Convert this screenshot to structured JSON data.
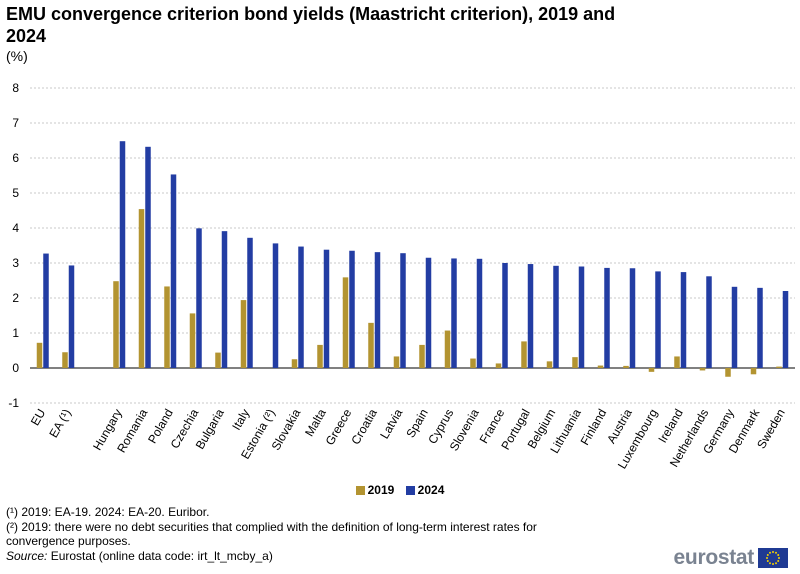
{
  "title": "EMU convergence criterion bond yields (Maastricht criterion), 2019 and 2024",
  "unit": "(%)",
  "chart_data": {
    "type": "bar",
    "categories": [
      "EU",
      "EA (¹)",
      "",
      "Hungary",
      "Romania",
      "Poland",
      "Czechia",
      "Bulgaria",
      "Italy",
      "Estonia (²)",
      "Slovakia",
      "Malta",
      "Greece",
      "Croatia",
      "Latvia",
      "Spain",
      "Cyprus",
      "Slovenia",
      "France",
      "Portugal",
      "Belgium",
      "Lithuania",
      "Finland",
      "Austria",
      "Luxembourg",
      "Ireland",
      "Netherlands",
      "Germany",
      "Denmark",
      "Sweden"
    ],
    "series": [
      {
        "name": "2019",
        "color": "#b39431",
        "values": [
          0.72,
          0.45,
          null,
          2.48,
          4.54,
          2.33,
          1.56,
          0.44,
          1.94,
          null,
          0.25,
          0.66,
          2.59,
          1.29,
          0.33,
          0.66,
          1.07,
          0.27,
          0.13,
          0.76,
          0.19,
          0.31,
          0.07,
          0.06,
          -0.11,
          0.33,
          -0.07,
          -0.25,
          -0.18,
          0.04
        ]
      },
      {
        "name": "2024",
        "color": "#233da3",
        "values": [
          3.27,
          2.93,
          null,
          6.48,
          6.32,
          5.53,
          3.99,
          3.91,
          3.72,
          3.56,
          3.47,
          3.38,
          3.35,
          3.31,
          3.28,
          3.15,
          3.13,
          3.12,
          3.0,
          2.97,
          2.92,
          2.9,
          2.86,
          2.85,
          2.76,
          2.74,
          2.62,
          2.32,
          2.29,
          2.2
        ]
      }
    ],
    "title": "EMU convergence criterion bond yields (Maastricht criterion), 2019 and 2024",
    "xlabel": "",
    "ylabel": "(%)",
    "ylim": [
      -1,
      8
    ],
    "yticks": [
      -1,
      0,
      1,
      2,
      3,
      4,
      5,
      6,
      7,
      8
    ],
    "grid": true,
    "legend": "bottom-center"
  },
  "legend": {
    "items": [
      {
        "label": "2019",
        "color": "#b39431"
      },
      {
        "label": "2024",
        "color": "#233da3"
      }
    ]
  },
  "footnotes": [
    "(¹) 2019: EA-19. 2024: EA-20. Euribor.",
    "(²) 2019: there were no debt securities that complied with the definition of long-term interest rates for convergence purposes."
  ],
  "source": {
    "label": "Source:",
    "text": " Eurostat (online data code: irt_lt_mcby_a)"
  },
  "logo": {
    "text": "eurostat",
    "icon": "eu-flag-icon"
  }
}
